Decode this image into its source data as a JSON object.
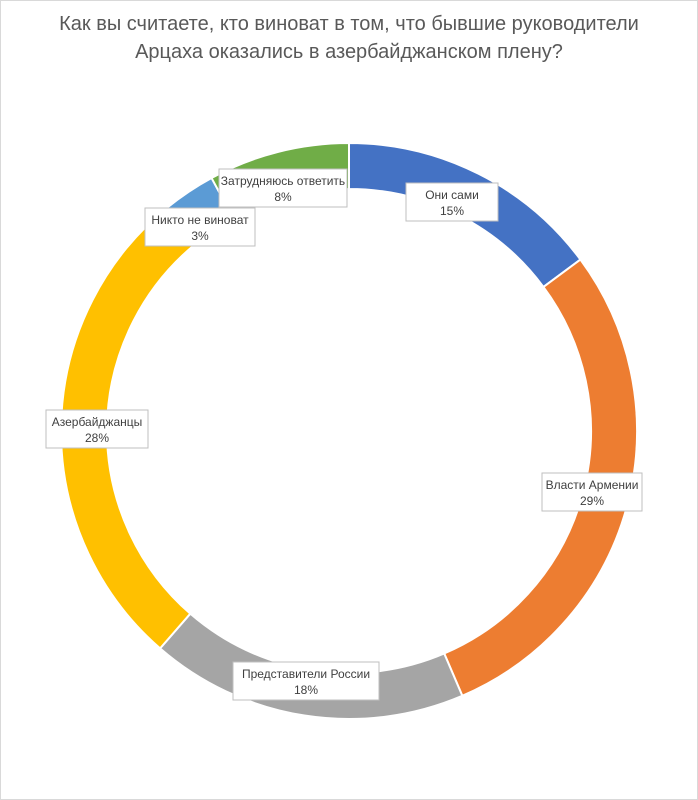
{
  "chart_data": {
    "type": "pie",
    "title": [
      "Как вы считаете, кто виноват в том, что бывшие руководители",
      "Арцаха оказались в азербайджанском плену?"
    ],
    "categories": [
      "Они сами",
      "Власти Армении",
      "Представители России",
      "Азербайджанцы",
      "Никто не виноват",
      "Затрудняюсь ответить"
    ],
    "values": [
      15,
      29,
      18,
      28,
      3,
      8
    ],
    "value_labels": [
      "15%",
      "29%",
      "18%",
      "28%",
      "3%",
      "8%"
    ],
    "colors": [
      "#4472C4",
      "#ED7D31",
      "#A5A5A5",
      "#FFC000",
      "#5B9BD5",
      "#70AD47"
    ],
    "donut": true,
    "legend": "none"
  }
}
